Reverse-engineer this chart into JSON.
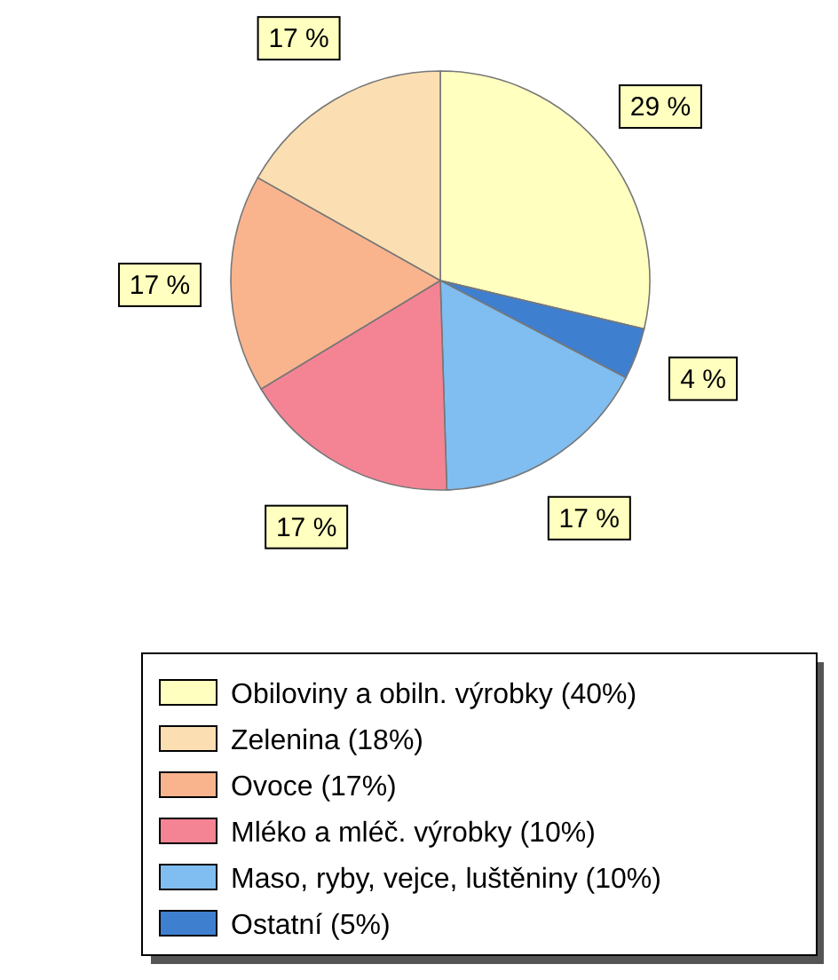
{
  "chart_data": {
    "type": "pie",
    "categories": [
      "Obiloviny a obiln. výrobky (40%)",
      "Zelenina (18%)",
      "Ovoce (17%)",
      "Mléko a mléč. výrobky (10%)",
      "Maso, ryby, vejce, luštěniny (10%)",
      "Ostatní (5%)"
    ],
    "values": [
      29,
      17,
      17,
      17,
      17,
      4
    ],
    "value_labels": [
      "29 %",
      "17 %",
      "17 %",
      "17 %",
      "17 %",
      "4 %"
    ],
    "colors": [
      "#ffffc0",
      "#fbdfb2",
      "#f9b48e",
      "#f48494",
      "#80bdf0",
      "#3f7fcf"
    ],
    "legend": "bottom"
  }
}
